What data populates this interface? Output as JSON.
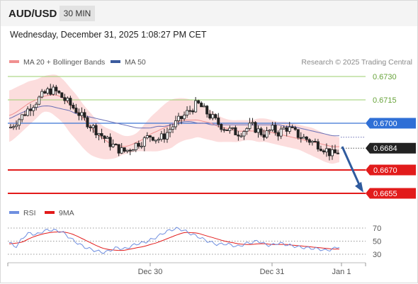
{
  "header": {
    "symbol": "AUD/USD",
    "timeframe": "30 MIN"
  },
  "datetime": "Wednesday, December 31, 2025 1:08:27 PM CET",
  "legend": {
    "ma20": "MA 20 + Bollinger Bands",
    "ma50": "MA 50",
    "source": "Research © 2025 Trading Central"
  },
  "rsi_legend": {
    "rsi": "RSI",
    "ma9": "9MA"
  },
  "colors": {
    "up": "#ffffff",
    "down": "#222222",
    "bands": "#fcd9d9",
    "ma20": "#f09090",
    "ma50": "#6a6fb5",
    "green_level": "#9bcf6e",
    "blue_level": "#3a74d4",
    "red_level": "#e21b1b",
    "arrow": "#2f5b9e",
    "rsi": "#6f8fe0",
    "rsi_ma": "#e21b1b"
  },
  "chart_data": {
    "type": "candlestick",
    "ylim": [
      0.6648,
      0.6736
    ],
    "x_ticks": [
      "Dec 30",
      "Dec 31",
      "Jan 1"
    ],
    "levels": [
      {
        "value": "0.6730",
        "color": "#67a33a",
        "kind": "green"
      },
      {
        "value": "0.6715",
        "color": "#67a33a",
        "kind": "green"
      },
      {
        "value": "0.6700",
        "color": "#2f6fd6",
        "kind": "blue"
      },
      {
        "value": "0.6684",
        "color": "#222222",
        "kind": "current"
      },
      {
        "value": "0.6670",
        "color": "#e21b1b",
        "kind": "red"
      },
      {
        "value": "0.6655",
        "color": "#e21b1b",
        "kind": "red"
      }
    ],
    "projection": {
      "from": 0.6685,
      "to": 0.6656
    },
    "price_path": [
      0.6697,
      0.6701,
      0.6705,
      0.671,
      0.6714,
      0.6718,
      0.6721,
      0.672,
      0.6716,
      0.6712,
      0.6708,
      0.6703,
      0.6699,
      0.6695,
      0.6691,
      0.6687,
      0.6684,
      0.6682,
      0.6684,
      0.6687,
      0.6689,
      0.6692,
      0.669,
      0.6692,
      0.6697,
      0.6701,
      0.6705,
      0.6709,
      0.6712,
      0.6708,
      0.6704,
      0.67,
      0.6697,
      0.6695,
      0.6694,
      0.6696,
      0.6698,
      0.6695,
      0.6693,
      0.6696,
      0.6694,
      0.6697,
      0.6695,
      0.6692,
      0.669,
      0.6688,
      0.6686,
      0.6683,
      0.668,
      0.6682
    ],
    "bb_upper": [
      0.6721,
      0.6723,
      0.6725,
      0.6727,
      0.6728,
      0.673,
      0.6731,
      0.6731,
      0.6728,
      0.6723,
      0.6718,
      0.6712,
      0.6707,
      0.6702,
      0.6698,
      0.6696,
      0.6694,
      0.6692,
      0.6692,
      0.6694,
      0.6699,
      0.6704,
      0.6708,
      0.6712,
      0.6715,
      0.6716,
      0.6716,
      0.6715,
      0.6713,
      0.6711,
      0.6708,
      0.6705,
      0.6703,
      0.6702,
      0.6702,
      0.6702,
      0.6702,
      0.6703,
      0.6703,
      0.6702,
      0.6701,
      0.6701,
      0.67,
      0.6699,
      0.6698,
      0.6697,
      0.6695,
      0.6693,
      0.6692,
      0.6691
    ],
    "bb_lower": [
      0.6688,
      0.6691,
      0.6695,
      0.6699,
      0.6703,
      0.6707,
      0.6707,
      0.6704,
      0.67,
      0.6694,
      0.6689,
      0.6684,
      0.668,
      0.6678,
      0.6677,
      0.6677,
      0.6678,
      0.668,
      0.6681,
      0.6682,
      0.6682,
      0.6682,
      0.6682,
      0.6683,
      0.6684,
      0.6687,
      0.6689,
      0.669,
      0.6691,
      0.669,
      0.6689,
      0.6688,
      0.6688,
      0.6688,
      0.6688,
      0.6689,
      0.6689,
      0.6688,
      0.6688,
      0.6687,
      0.6686,
      0.6685,
      0.6684,
      0.6683,
      0.6681,
      0.6679,
      0.6677,
      0.6675,
      0.6674,
      0.6675
    ],
    "ma20": [
      0.6705,
      0.6707,
      0.671,
      0.6713,
      0.6715,
      0.6717,
      0.6718,
      0.6718,
      0.6716,
      0.6712,
      0.6708,
      0.6703,
      0.6698,
      0.6693,
      0.669,
      0.6687,
      0.6686,
      0.6685,
      0.6686,
      0.6688,
      0.669,
      0.6693,
      0.6695,
      0.6697,
      0.6699,
      0.6701,
      0.6702,
      0.6702,
      0.6702,
      0.6701,
      0.67,
      0.6698,
      0.6697,
      0.6696,
      0.6695,
      0.6695,
      0.6695,
      0.6695,
      0.6695,
      0.6694,
      0.6693,
      0.6692,
      0.6691,
      0.669,
      0.6689,
      0.6688,
      0.6687,
      0.6686,
      0.6685,
      0.6685
    ],
    "ma50": [
      0.6703,
      0.6705,
      0.6707,
      0.6709,
      0.671,
      0.6711,
      0.6711,
      0.671,
      0.6709,
      0.6708,
      0.6706,
      0.6705,
      0.6704,
      0.6703,
      0.6702,
      0.6701,
      0.67,
      0.6699,
      0.6698,
      0.6697,
      0.6697,
      0.6697,
      0.6698,
      0.6698,
      0.6699,
      0.67,
      0.6701,
      0.6701,
      0.67,
      0.67,
      0.6699,
      0.6699,
      0.6699,
      0.6699,
      0.6699,
      0.6699,
      0.6699,
      0.6699,
      0.6699,
      0.6699,
      0.6699,
      0.6698,
      0.6698,
      0.6697,
      0.6696,
      0.6695,
      0.6694,
      0.6693,
      0.6692,
      0.6692
    ],
    "rsi": {
      "ticks": [
        "70",
        "50",
        "30"
      ],
      "ylim": [
        20,
        80
      ],
      "values": [
        48,
        42,
        55,
        62,
        60,
        65,
        67,
        66,
        63,
        55,
        48,
        42,
        38,
        35,
        33,
        36,
        40,
        38,
        42,
        46,
        48,
        52,
        57,
        63,
        67,
        69,
        66,
        61,
        57,
        52,
        48,
        45,
        46,
        44,
        42,
        46,
        48,
        50,
        45,
        44,
        47,
        45,
        43,
        41,
        40,
        39,
        38,
        36,
        38,
        42
      ],
      "ma9": [
        46,
        47,
        49,
        54,
        58,
        61,
        63,
        64,
        64,
        62,
        58,
        53,
        48,
        43,
        39,
        37,
        36,
        36,
        38,
        40,
        42,
        45,
        48,
        52,
        56,
        60,
        63,
        63,
        62,
        59,
        56,
        53,
        50,
        48,
        46,
        45,
        45,
        46,
        46,
        45,
        45,
        45,
        44,
        43,
        42,
        41,
        40,
        39,
        38,
        38
      ]
    }
  }
}
